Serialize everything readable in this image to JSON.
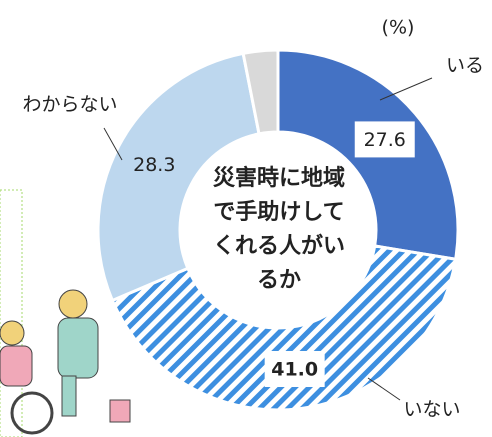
{
  "chart_data": {
    "type": "donut",
    "title": "災害時に地域で手助けしてくれる人がいるか",
    "unit_label": "(%)",
    "categories": [
      "いる",
      "いない",
      "わからない",
      null
    ],
    "values": [
      27.6,
      41.0,
      28.3,
      3.1
    ],
    "value_labels": [
      "27.6",
      "41.0",
      "28.3",
      null
    ],
    "colors": [
      "#4472c4",
      "#3d8fe0",
      "#bdd7ee",
      "#d9d9d9"
    ],
    "hatched": [
      false,
      true,
      false,
      false
    ]
  }
}
